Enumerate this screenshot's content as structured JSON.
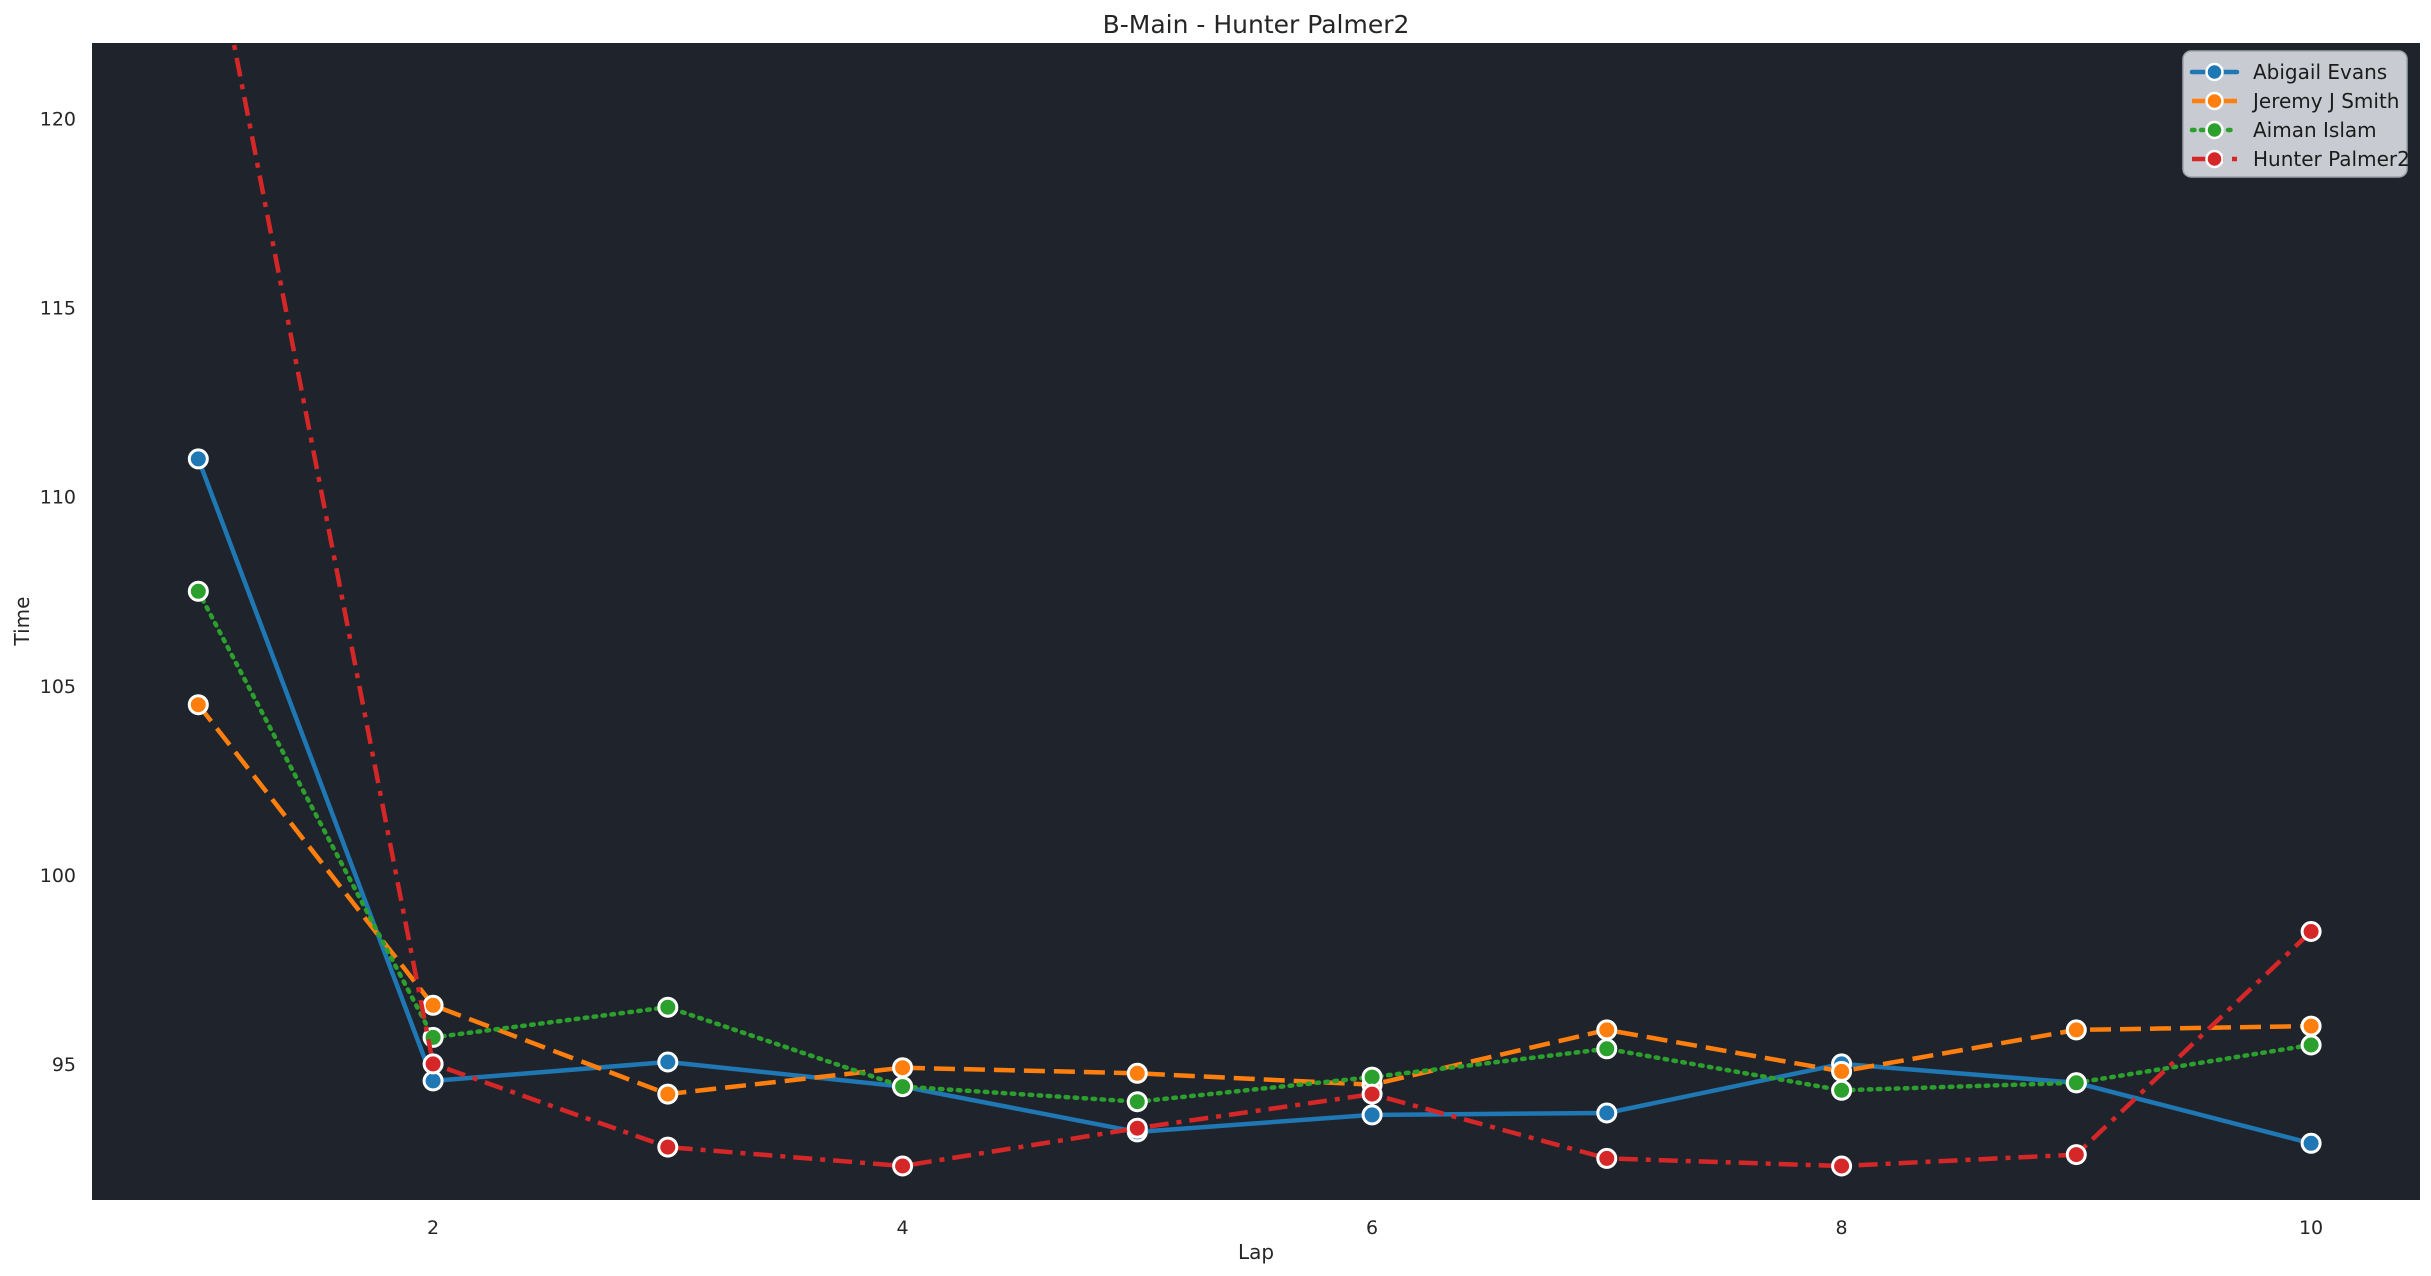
{
  "figure": {
    "background": "#ffffff",
    "plot_background": "#1f242c",
    "text_color": "#262626",
    "tick_color": "#262626",
    "legend": {
      "fill": "#d7dae0",
      "border": "#9da3ab",
      "text_color": "#1c1c1c"
    }
  },
  "chart_data": {
    "type": "line",
    "title": "B-Main - Hunter Palmer2",
    "xlabel": "Lap",
    "ylabel": "Time",
    "x": [
      1,
      2,
      3,
      4,
      5,
      6,
      7,
      8,
      9,
      10
    ],
    "xlim": [
      0.547,
      10.464
    ],
    "ylim": [
      91.4,
      122.0
    ],
    "xticks": [
      2,
      4,
      6,
      8,
      10
    ],
    "yticks": [
      95,
      100,
      105,
      110,
      115,
      120
    ],
    "grid": false,
    "legend_position": "upper-right",
    "marker": "circle",
    "series": [
      {
        "name": "Abigail Evans",
        "color": "#1f77b4",
        "dash": "solid",
        "values": [
          111.0,
          94.55,
          95.05,
          94.4,
          93.2,
          93.65,
          93.7,
          95.0,
          94.5,
          92.9
        ]
      },
      {
        "name": "Jeremy J Smith",
        "color": "#ff7f0e",
        "dash": "dashed",
        "values": [
          104.5,
          96.55,
          94.2,
          94.9,
          94.75,
          94.45,
          95.9,
          94.8,
          95.9,
          96.0
        ]
      },
      {
        "name": "Aiman Islam",
        "color": "#2ca02c",
        "dash": "dotted",
        "values": [
          107.5,
          95.7,
          96.5,
          94.4,
          94.0,
          94.65,
          95.4,
          94.3,
          94.5,
          95.5
        ]
      },
      {
        "name": "Hunter Palmer2",
        "color": "#d62728",
        "dash": "dashdot",
        "values": [
          126.8,
          95.0,
          92.8,
          92.3,
          93.3,
          94.2,
          92.5,
          92.3,
          92.6,
          98.5
        ]
      }
    ]
  }
}
